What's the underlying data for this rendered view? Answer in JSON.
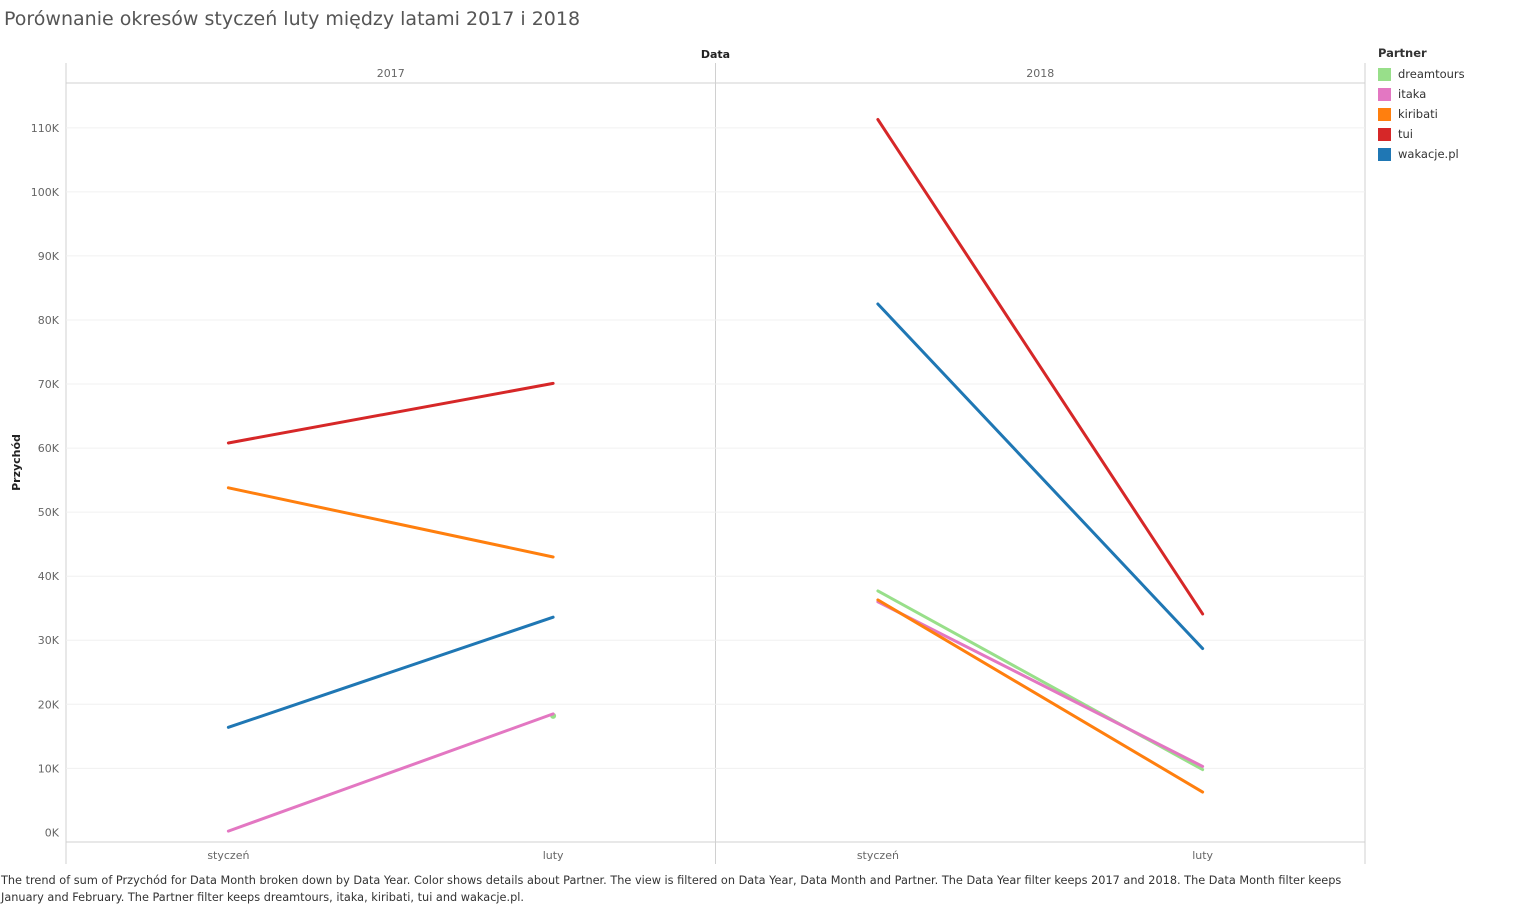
{
  "title": "Porównanie okresów styczeń luty między latami 2017 i 2018",
  "caption": "The trend of sum of Przychód for Data Month broken down by Data Year.  Color shows details about Partner. The view is filtered on Data Year, Data Month and Partner. The Data Year filter keeps 2017 and 2018. The Data Month filter keeps January and February. The Partner filter keeps dreamtours, itaka, kiribati, tui and wakacje.pl.",
  "chart_data": {
    "type": "line",
    "column_header": "Data",
    "panels": [
      "2017",
      "2018"
    ],
    "categories": [
      "styczeń",
      "luty"
    ],
    "ylabel": "Przychód",
    "ylim": [
      -1500,
      117000
    ],
    "yticks": [
      0,
      10000,
      20000,
      30000,
      40000,
      50000,
      60000,
      70000,
      80000,
      90000,
      100000,
      110000
    ],
    "ytick_labels": [
      "0K",
      "10K",
      "20K",
      "30K",
      "40K",
      "50K",
      "60K",
      "70K",
      "80K",
      "90K",
      "100K",
      "110K"
    ],
    "grid": true,
    "legend": {
      "title": "Partner",
      "placement": "right"
    },
    "series": [
      {
        "name": "dreamtours",
        "color": "#98df8a",
        "values": {
          "2017": [
            null,
            18200
          ],
          "2018": [
            37700,
            9800
          ]
        }
      },
      {
        "name": "itaka",
        "color": "#e377c2",
        "values": {
          "2017": [
            200,
            18500
          ],
          "2018": [
            36000,
            10300
          ]
        }
      },
      {
        "name": "kiribati",
        "color": "#ff7f0e",
        "values": {
          "2017": [
            53800,
            43000
          ],
          "2018": [
            36300,
            6300
          ]
        }
      },
      {
        "name": "tui",
        "color": "#d62728",
        "values": {
          "2017": [
            60800,
            70100
          ],
          "2018": [
            111300,
            34100
          ]
        }
      },
      {
        "name": "wakacje.pl",
        "color": "#1f77b4",
        "values": {
          "2017": [
            16400,
            33600
          ],
          "2018": [
            82500,
            28700
          ]
        }
      }
    ]
  }
}
